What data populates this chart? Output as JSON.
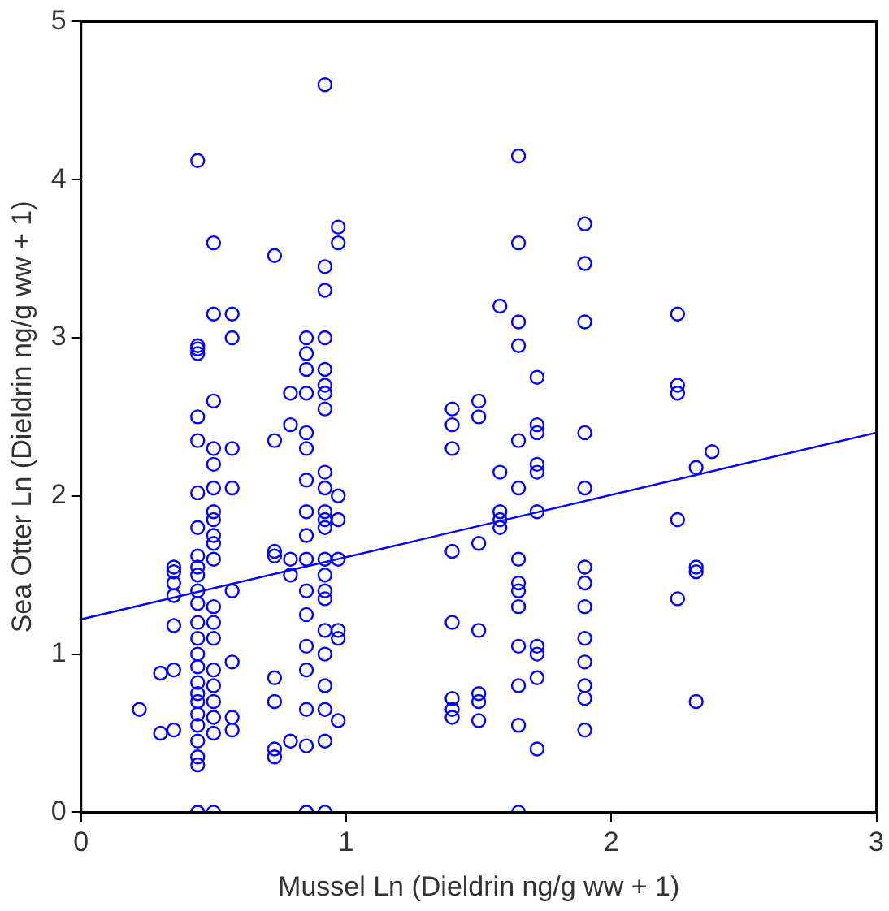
{
  "chart_data": {
    "type": "scatter",
    "xlabel": "Mussel Ln (Dieldrin ng/g ww + 1)",
    "ylabel": "Sea Otter Ln (Dieldrin ng/g ww + 1)",
    "xlim": [
      0,
      3
    ],
    "xticks": [
      0,
      1,
      2,
      3
    ],
    "ylim": [
      0,
      5
    ],
    "yticks": [
      0,
      1,
      2,
      3,
      4,
      5
    ],
    "grid": false,
    "legend": false,
    "marker": "circle",
    "series": [
      {
        "type": "scatter",
        "color": "#0000ff",
        "x": [
          0.22,
          0.3,
          0.3,
          0.35,
          0.35,
          0.35,
          0.35,
          0.35,
          0.35,
          0.35,
          0.44,
          0.44,
          0.44,
          0.44,
          0.44,
          0.44,
          0.44,
          0.44,
          0.44,
          0.44,
          0.44,
          0.44,
          0.44,
          0.44,
          0.44,
          0.44,
          0.44,
          0.44,
          0.44,
          0.44,
          0.44,
          0.44,
          0.44,
          0.44,
          0.44,
          0.44,
          0.44,
          0.5,
          0.5,
          0.5,
          0.5,
          0.5,
          0.5,
          0.5,
          0.5,
          0.5,
          0.5,
          0.5,
          0.5,
          0.5,
          0.5,
          0.5,
          0.5,
          0.5,
          0.5,
          0.5,
          0.5,
          0.57,
          0.57,
          0.57,
          0.57,
          0.57,
          0.57,
          0.57,
          0.57,
          0.73,
          0.73,
          0.73,
          0.73,
          0.73,
          0.73,
          0.73,
          0.73,
          0.79,
          0.79,
          0.79,
          0.79,
          0.79,
          0.85,
          0.85,
          0.85,
          0.85,
          0.85,
          0.85,
          0.85,
          0.85,
          0.85,
          0.85,
          0.85,
          0.85,
          0.85,
          0.85,
          0.85,
          0.85,
          0.85,
          0.85,
          0.92,
          0.92,
          0.92,
          0.92,
          0.92,
          0.92,
          0.92,
          0.92,
          0.92,
          0.92,
          0.92,
          0.92,
          0.92,
          0.92,
          0.92,
          0.92,
          0.92,
          0.92,
          0.92,
          0.92,
          0.92,
          0.92,
          0.92,
          0.97,
          0.97,
          0.97,
          0.97,
          0.97,
          0.97,
          0.97,
          0.97,
          1.4,
          1.4,
          1.4,
          1.4,
          1.4,
          1.4,
          1.4,
          1.4,
          1.5,
          1.5,
          1.5,
          1.5,
          1.5,
          1.5,
          1.5,
          1.58,
          1.58,
          1.58,
          1.58,
          1.58,
          1.65,
          1.65,
          1.65,
          1.65,
          1.65,
          1.65,
          1.65,
          1.65,
          1.65,
          1.65,
          1.65,
          1.65,
          1.65,
          1.65,
          1.72,
          1.72,
          1.72,
          1.72,
          1.72,
          1.72,
          1.72,
          1.72,
          1.72,
          1.72,
          1.9,
          1.9,
          1.9,
          1.9,
          1.9,
          1.9,
          1.9,
          1.9,
          1.9,
          1.9,
          1.9,
          1.9,
          1.9,
          2.25,
          2.25,
          2.25,
          2.25,
          2.25,
          2.32,
          2.32,
          2.32,
          2.32,
          2.38
        ],
        "values": [
          0.65,
          0.88,
          0.5,
          1.52,
          1.45,
          1.37,
          1.55,
          1.18,
          0.52,
          0.9,
          4.12,
          2.93,
          2.95,
          2.9,
          2.5,
          2.35,
          2.02,
          1.8,
          1.62,
          1.55,
          1.5,
          1.4,
          1.32,
          1.2,
          1.1,
          1.0,
          0.92,
          0.82,
          0.75,
          0.7,
          0.62,
          0.55,
          0.45,
          0.35,
          0.3,
          0,
          0,
          3.6,
          3.15,
          2.6,
          2.3,
          2.2,
          2.05,
          1.9,
          1.85,
          1.75,
          1.7,
          1.6,
          1.3,
          1.2,
          1.1,
          0.9,
          0.8,
          0.7,
          0.6,
          0.5,
          0,
          3.15,
          3.0,
          2.3,
          2.05,
          1.4,
          0.95,
          0.6,
          0.52,
          3.52,
          2.35,
          1.65,
          1.62,
          0.85,
          0.7,
          0.4,
          0.35,
          2.65,
          2.45,
          1.6,
          1.5,
          0.45,
          3.0,
          2.9,
          2.8,
          2.65,
          2.4,
          2.3,
          2.1,
          1.9,
          1.75,
          1.6,
          1.4,
          1.25,
          1.05,
          0.9,
          0.65,
          0.42,
          0,
          0,
          4.6,
          3.45,
          3.3,
          3.0,
          2.8,
          2.7,
          2.65,
          2.55,
          2.15,
          2.05,
          1.9,
          1.85,
          1.8,
          1.6,
          1.5,
          1.4,
          1.35,
          1.15,
          1.0,
          0.8,
          0.65,
          0.45,
          0,
          3.7,
          3.6,
          2.0,
          1.85,
          1.6,
          1.1,
          1.15,
          0.58,
          2.55,
          2.45,
          2.3,
          1.65,
          1.2,
          0.72,
          0.65,
          0.6,
          2.6,
          2.5,
          1.7,
          1.15,
          0.75,
          0.7,
          0.58,
          3.2,
          2.15,
          1.9,
          1.8,
          1.85,
          4.15,
          3.6,
          3.1,
          2.95,
          2.35,
          2.05,
          1.6,
          1.45,
          1.4,
          1.3,
          1.05,
          0.8,
          0.55,
          0,
          2.75,
          2.45,
          2.4,
          2.2,
          2.15,
          1.9,
          1.05,
          1.0,
          0.85,
          0.4,
          3.72,
          3.47,
          3.1,
          2.4,
          2.05,
          1.55,
          1.45,
          1.3,
          1.1,
          0.95,
          0.8,
          0.72,
          0.52,
          3.15,
          2.7,
          2.65,
          1.85,
          1.35,
          2.18,
          1.55,
          1.52,
          0.7,
          2.28
        ]
      },
      {
        "type": "line",
        "color": "#0000ff",
        "x": [
          0,
          3
        ],
        "values": [
          1.22,
          2.4
        ],
        "marker": "none"
      }
    ]
  }
}
